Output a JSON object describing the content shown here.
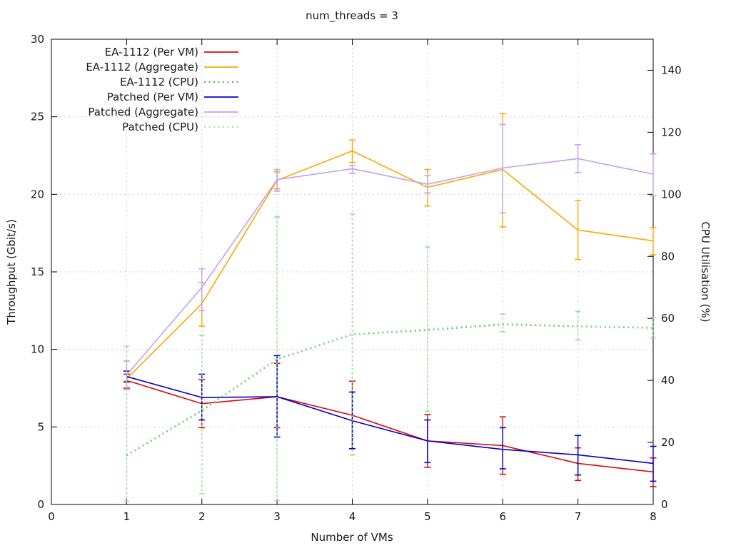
{
  "chart": {
    "title": "num_threads = 3",
    "xlabel": "Number of VMs",
    "ylabel": "Throughput (Gbit/s)",
    "y2label": "CPU Utilisation (%)"
  },
  "colors": {
    "red": "#e00707",
    "orange": "#ffa500",
    "green_medium": "#50b050",
    "blue": "#0000cc",
    "purple": "#c3a0ef",
    "green_light": "#90ee90",
    "grid": "#cccccc",
    "border": "#000000",
    "text": "#1a1a1a"
  },
  "chart_data": {
    "type": "line",
    "title": "num_threads = 3",
    "xlabel": "Number of VMs",
    "ylabel": "Throughput (Gbit/s)",
    "y2label": "CPU Utilisation (%)",
    "xlim": [
      0,
      8
    ],
    "ylim": [
      0,
      30
    ],
    "y2lim": [
      0,
      150
    ],
    "xticks": [
      0,
      1,
      2,
      3,
      4,
      5,
      6,
      7,
      8
    ],
    "yticks": [
      0,
      5,
      10,
      15,
      20,
      25,
      30
    ],
    "y2ticks": [
      0,
      20,
      40,
      60,
      80,
      100,
      120,
      140
    ],
    "grid": true,
    "legend_position": "top-left-inside",
    "x": [
      1,
      2,
      3,
      4,
      5,
      6,
      7,
      8
    ],
    "series": [
      {
        "name": "EA-1112 (Per VM)",
        "axis": "y1",
        "style": "solid",
        "color": "#e00707",
        "values": [
          8.0,
          6.5,
          6.95,
          5.75,
          4.1,
          3.8,
          2.65,
          2.1
        ],
        "err_lo": [
          7.5,
          4.95,
          4.95,
          3.6,
          2.4,
          1.95,
          1.55,
          1.15
        ],
        "err_hi": [
          8.4,
          8.05,
          9.1,
          7.95,
          5.8,
          5.65,
          3.65,
          3.0
        ]
      },
      {
        "name": "EA-1112 (Aggregate)",
        "axis": "y1",
        "style": "solid",
        "color": "#ffa500",
        "values": [
          8.1,
          12.95,
          20.9,
          22.8,
          20.45,
          21.6,
          17.7,
          17.0
        ],
        "err_lo": [
          7.95,
          11.5,
          20.35,
          22.05,
          19.25,
          17.9,
          15.8,
          16.1
        ],
        "err_hi": [
          8.6,
          14.3,
          21.45,
          23.5,
          21.6,
          25.2,
          19.6,
          17.85
        ]
      },
      {
        "name": "EA-1112 (CPU)",
        "axis": "y2",
        "style": "dotted",
        "color": "#50b050",
        "values": [
          15.8,
          30.2,
          46.8,
          54.8,
          56.2,
          58.0,
          57.4,
          56.9
        ],
        "err_lo": [
          1.0,
          3.5,
          1.2,
          16.0,
          30.0,
          55.7,
          53.0,
          53.7
        ],
        "err_hi": [
          51.0,
          54.5,
          92.7,
          93.6,
          83.0,
          61.4,
          62.2,
          60.3
        ]
      },
      {
        "name": "Patched (Per VM)",
        "axis": "y1",
        "style": "solid",
        "color": "#0000cc",
        "values": [
          8.25,
          6.9,
          6.95,
          5.4,
          4.1,
          3.55,
          3.2,
          2.65
        ],
        "err_lo": [
          7.9,
          5.45,
          4.35,
          3.6,
          2.7,
          2.3,
          1.9,
          1.5
        ],
        "err_hi": [
          8.6,
          8.4,
          9.6,
          7.25,
          5.45,
          4.95,
          4.45,
          3.75
        ]
      },
      {
        "name": "Patched (Aggregate)",
        "axis": "y1",
        "style": "solid",
        "color": "#c3a0ef",
        "values": [
          8.35,
          14.0,
          20.95,
          21.65,
          20.65,
          21.7,
          22.3,
          21.3
        ],
        "err_lo": [
          7.4,
          12.5,
          20.2,
          21.35,
          20.1,
          18.8,
          21.4,
          19.9
        ],
        "err_hi": [
          9.25,
          15.2,
          21.6,
          21.85,
          21.2,
          24.5,
          23.2,
          22.6
        ]
      },
      {
        "name": "Patched (CPU)",
        "axis": "y2",
        "style": "dotted",
        "color": "#90ee90",
        "values": [
          16.0,
          30.5,
          47.0,
          55.0,
          56.5,
          58.3,
          57.6,
          57.1
        ],
        "err_lo": [
          1.0,
          3.5,
          1.2,
          16.0,
          30.0,
          55.7,
          53.0,
          53.7
        ],
        "err_hi": [
          51.0,
          54.5,
          92.7,
          93.6,
          83.0,
          61.4,
          62.2,
          60.3
        ]
      }
    ]
  }
}
